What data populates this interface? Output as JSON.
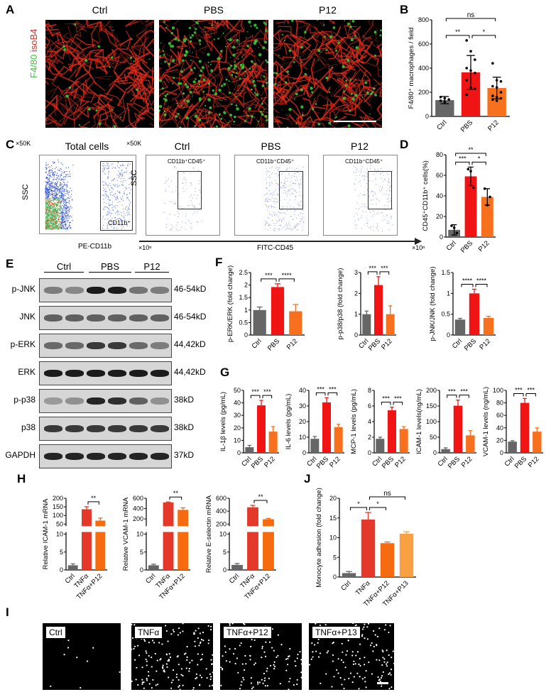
{
  "panels": {
    "A": "A",
    "B": "B",
    "C": "C",
    "D": "D",
    "E": "E",
    "F": "F",
    "G": "G",
    "H": "H",
    "I": "I",
    "J": "J"
  },
  "panel_a": {
    "groups": [
      "Ctrl",
      "PBS",
      "P12"
    ],
    "stain_green": "F4/80",
    "stain_red": "isoB4",
    "green": "#3ac43a",
    "red": "#e02a1a"
  },
  "panel_c": {
    "total_title": "Total cells",
    "scale": "×50K",
    "scale2": "×50K",
    "ylabel": "SSC",
    "ylabel2": "SSC",
    "xlabel_total": "PE-CD11b",
    "xunit": "×10ⁿ",
    "xlabel": "FITC-CD45",
    "xunit2": "×10ⁿ",
    "gate_total": "CD11b⁺",
    "groups": [
      "Ctrl",
      "PBS",
      "P12"
    ],
    "gate": "CD11b⁺CD45⁺"
  },
  "panel_e": {
    "groups": [
      "Ctrl",
      "PBS",
      "P12"
    ],
    "rows": [
      {
        "label": "p-JNK",
        "size": "46-54kD",
        "levels": [
          0.45,
          0.4,
          0.95,
          0.95,
          0.5,
          0.45
        ]
      },
      {
        "label": "JNK",
        "size": "46-54kD",
        "levels": [
          0.6,
          0.6,
          0.6,
          0.6,
          0.6,
          0.6
        ]
      },
      {
        "label": "p-ERK",
        "size": "44,42kD",
        "levels": [
          0.55,
          0.55,
          0.8,
          0.8,
          0.55,
          0.45
        ]
      },
      {
        "label": "ERK",
        "size": "44,42kD",
        "levels": [
          0.95,
          0.95,
          0.95,
          0.95,
          0.95,
          0.95
        ]
      },
      {
        "label": "p-p38",
        "size": "38kD",
        "levels": [
          0.3,
          0.35,
          0.9,
          0.85,
          0.6,
          0.35
        ]
      },
      {
        "label": "p38",
        "size": "38kD",
        "levels": [
          0.8,
          0.8,
          0.8,
          0.8,
          0.8,
          0.8
        ]
      },
      {
        "label": "GAPDH",
        "size": "37kD",
        "levels": [
          0.9,
          0.9,
          0.9,
          0.9,
          0.9,
          0.9
        ]
      }
    ]
  },
  "panel_i": {
    "groups": [
      "Ctrl",
      "TNFα",
      "TNFα+P12",
      "TNFα+P13"
    ],
    "density": [
      0.05,
      0.8,
      0.55,
      0.7
    ]
  },
  "colors": {
    "Ctrl": "#666666",
    "PBS": "#f01414",
    "P12": "#f6701e",
    "TNFα": "#e4382a",
    "TNFα+P12": "#f66a10",
    "TNFα+P13": "#f8a042"
  },
  "chart_data": [
    {
      "id": "B",
      "type": "bar",
      "ylabel": "F4/80⁺ macrophages / field",
      "categories": [
        "Ctrl",
        "PBS",
        "P12"
      ],
      "values": [
        135,
        365,
        235
      ],
      "errors": [
        30,
        140,
        90
      ],
      "ylim": [
        0,
        800
      ],
      "yticks": [
        0,
        200,
        400,
        600,
        800
      ],
      "points": [
        [
          160,
          150,
          140,
          130,
          120
        ],
        [
          630,
          540,
          470,
          400,
          380,
          360,
          300,
          240,
          230,
          180
        ],
        [
          440,
          300,
          290,
          250,
          240,
          200,
          170,
          160,
          150,
          140,
          130
        ]
      ],
      "significance": [
        {
          "a": 0,
          "b": 1,
          "label": "**",
          "level": 0
        },
        {
          "a": 1,
          "b": 2,
          "label": "*",
          "level": 0
        },
        {
          "a": 0,
          "b": 2,
          "label": "ns",
          "level": 1
        }
      ]
    },
    {
      "id": "D",
      "type": "bar",
      "ylabel": "CD45⁺CD11b⁺ cells(%)",
      "categories": [
        "Ctrl",
        "PBS",
        "P12"
      ],
      "values": [
        7,
        59,
        39
      ],
      "errors": [
        5,
        9,
        8
      ],
      "ylim": [
        0,
        80
      ],
      "yticks": [
        0,
        20,
        40,
        60,
        80
      ],
      "points": [
        [
          11,
          9,
          4
        ],
        [
          66,
          64,
          48
        ],
        [
          47,
          31,
          39
        ]
      ],
      "significance": [
        {
          "a": 0,
          "b": 1,
          "label": "***",
          "level": 0
        },
        {
          "a": 1,
          "b": 2,
          "label": "*",
          "level": 0
        },
        {
          "a": 0,
          "b": 2,
          "label": "**",
          "level": 1
        }
      ]
    },
    {
      "id": "F1",
      "type": "bar",
      "ylabel": "p-ERK/ERK (fold change)",
      "categories": [
        "Ctrl",
        "PBS",
        "P12"
      ],
      "values": [
        1.0,
        1.92,
        0.95
      ],
      "errors": [
        0.12,
        0.13,
        0.27
      ],
      "ylim": [
        0,
        2.5
      ],
      "yticks": [
        0,
        0.5,
        1.0,
        1.5,
        2.0,
        2.5
      ],
      "significance": [
        {
          "a": 0,
          "b": 1,
          "label": "***",
          "level": 0
        },
        {
          "a": 1,
          "b": 2,
          "label": "****",
          "level": 0
        }
      ]
    },
    {
      "id": "F2",
      "type": "bar",
      "ylabel": "p-p38/p38 (fold change)",
      "categories": [
        "Ctrl",
        "PBS",
        "P12"
      ],
      "values": [
        1.0,
        2.4,
        1.0
      ],
      "errors": [
        0.15,
        0.4,
        0.4
      ],
      "ylim": [
        0,
        3
      ],
      "yticks": [
        0,
        1,
        2,
        3
      ],
      "significance": [
        {
          "a": 0,
          "b": 1,
          "label": "***",
          "level": 0
        },
        {
          "a": 1,
          "b": 2,
          "label": "***",
          "level": 0
        }
      ]
    },
    {
      "id": "F3",
      "type": "bar",
      "ylabel": "p-JNK/JNK (fold change)",
      "categories": [
        "Ctrl",
        "PBS",
        "P12"
      ],
      "values": [
        0.37,
        1.0,
        0.41
      ],
      "errors": [
        0.03,
        0.1,
        0.04
      ],
      "ylim": [
        0,
        1.5
      ],
      "yticks": [
        0,
        0.5,
        1.0,
        1.5
      ],
      "significance": [
        {
          "a": 0,
          "b": 1,
          "label": "****",
          "level": 0
        },
        {
          "a": 1,
          "b": 2,
          "label": "****",
          "level": 0
        }
      ]
    },
    {
      "id": "G1",
      "type": "bar",
      "ylabel": "IL-1β levels (pg/mL)",
      "categories": [
        "Ctrl",
        "PBS",
        "P12"
      ],
      "values": [
        4.5,
        38,
        17
      ],
      "errors": [
        1.5,
        4,
        4
      ],
      "ylim": [
        0,
        50
      ],
      "yticks": [
        0,
        10,
        20,
        30,
        40,
        50
      ],
      "significance": [
        {
          "a": 0,
          "b": 1,
          "label": "***",
          "level": 0
        },
        {
          "a": 1,
          "b": 2,
          "label": "***",
          "level": 0
        }
      ]
    },
    {
      "id": "G2",
      "type": "bar",
      "ylabel": "IL-6 levels (pg/mL)",
      "categories": [
        "Ctrl",
        "PBS",
        "P12"
      ],
      "values": [
        9,
        32.3,
        16.5
      ],
      "errors": [
        1.5,
        3,
        1.8
      ],
      "ylim": [
        0,
        40
      ],
      "yticks": [
        0,
        10,
        20,
        30,
        40
      ],
      "significance": [
        {
          "a": 0,
          "b": 1,
          "label": "***",
          "level": 0
        },
        {
          "a": 1,
          "b": 2,
          "label": "***",
          "level": 0
        }
      ]
    },
    {
      "id": "G3",
      "type": "bar",
      "ylabel": "MCP-1 levels  (pg/mL)",
      "categories": [
        "Ctrl",
        "PBS",
        "P12"
      ],
      "values": [
        1.8,
        5.45,
        3.05
      ],
      "errors": [
        0.2,
        0.4,
        0.3
      ],
      "ylim": [
        0,
        8
      ],
      "yticks": [
        0,
        2,
        4,
        6,
        8
      ],
      "significance": [
        {
          "a": 0,
          "b": 1,
          "label": "***",
          "level": 0
        },
        {
          "a": 1,
          "b": 2,
          "label": "***",
          "level": 0
        }
      ]
    },
    {
      "id": "G4",
      "type": "bar",
      "ylabel": "ICAM-1 levels(ng/mL)",
      "categories": [
        "Ctrl",
        "PBS",
        "P12"
      ],
      "values": [
        12,
        151,
        56
      ],
      "errors": [
        4,
        18,
        15
      ],
      "ylim": [
        0,
        200
      ],
      "yticks": [
        0,
        50,
        100,
        150,
        200
      ],
      "significance": [
        {
          "a": 0,
          "b": 1,
          "label": "***",
          "level": 0
        },
        {
          "a": 1,
          "b": 2,
          "label": "***",
          "level": 0
        }
      ]
    },
    {
      "id": "G5",
      "type": "bar",
      "ylabel": "VCAM-1 levels (ng/mL)",
      "categories": [
        "Ctrl",
        "PBS",
        "P12"
      ],
      "values": [
        18,
        80,
        34
      ],
      "errors": [
        1.5,
        7,
        6
      ],
      "ylim": [
        0,
        100
      ],
      "yticks": [
        0,
        20,
        40,
        60,
        80,
        100
      ],
      "significance": [
        {
          "a": 0,
          "b": 1,
          "label": "***",
          "level": 0
        },
        {
          "a": 1,
          "b": 2,
          "label": "***",
          "level": 0
        }
      ]
    },
    {
      "id": "H1",
      "type": "bar",
      "ylabel": "Relative ICAM-1 mRNA",
      "categories": [
        "Ctrl",
        "TNFα",
        "TNFα+P12"
      ],
      "values": [
        1.3,
        136,
        70
      ],
      "errors": [
        0.4,
        15,
        15
      ],
      "broken_axis": {
        "lower": [
          0,
          10
        ],
        "upper": [
          50,
          200
        ],
        "lower_ticks": [
          0,
          5,
          10
        ],
        "upper_ticks": [
          50,
          100,
          150,
          200
        ]
      },
      "significance": [
        {
          "a": 1,
          "b": 2,
          "label": "**",
          "level": 0
        }
      ]
    },
    {
      "id": "H2",
      "type": "bar",
      "ylabel": "Relative VCAM-1 mRNA",
      "categories": [
        "Ctrl",
        "TNFα",
        "TNFα+P12"
      ],
      "values": [
        1.3,
        520,
        375
      ],
      "errors": [
        0.3,
        8,
        40
      ],
      "broken_axis": {
        "lower": [
          0,
          10
        ],
        "upper": [
          100,
          600
        ],
        "lower_ticks": [
          0,
          5,
          10
        ],
        "upper_ticks": [
          200,
          400,
          600
        ]
      },
      "significance": [
        {
          "a": 1,
          "b": 2,
          "label": "**",
          "level": 0
        }
      ]
    },
    {
      "id": "H3",
      "type": "bar",
      "ylabel": "Relative E-selectin mRNA",
      "categories": [
        "Ctrl",
        "TNFα",
        "TNFα+P12"
      ],
      "values": [
        1.4,
        460,
        275
      ],
      "errors": [
        0.4,
        30,
        12
      ],
      "broken_axis": {
        "lower": [
          0,
          10
        ],
        "upper": [
          200,
          600
        ],
        "lower_ticks": [
          0,
          5,
          10
        ],
        "upper_ticks": [
          200,
          400,
          600
        ]
      },
      "significance": [
        {
          "a": 1,
          "b": 2,
          "label": "**",
          "level": 0
        }
      ]
    },
    {
      "id": "J",
      "type": "bar",
      "ylabel": "Monocyte adhesion (fold change)",
      "categories": [
        "Ctrl",
        "TNFα",
        "TNFα+P12",
        "TNFα+P13"
      ],
      "values": [
        1.0,
        14.6,
        8.6,
        11.0
      ],
      "errors": [
        0.4,
        1.8,
        0.3,
        0.5
      ],
      "ylim": [
        0,
        20
      ],
      "yticks": [
        0,
        5,
        10,
        15,
        20
      ],
      "significance": [
        {
          "a": 0,
          "b": 1,
          "label": "*",
          "level": 0
        },
        {
          "a": 1,
          "b": 2,
          "label": "*",
          "level": 0
        },
        {
          "a": 1,
          "b": 3,
          "label": "ns",
          "level": 1
        }
      ]
    }
  ]
}
